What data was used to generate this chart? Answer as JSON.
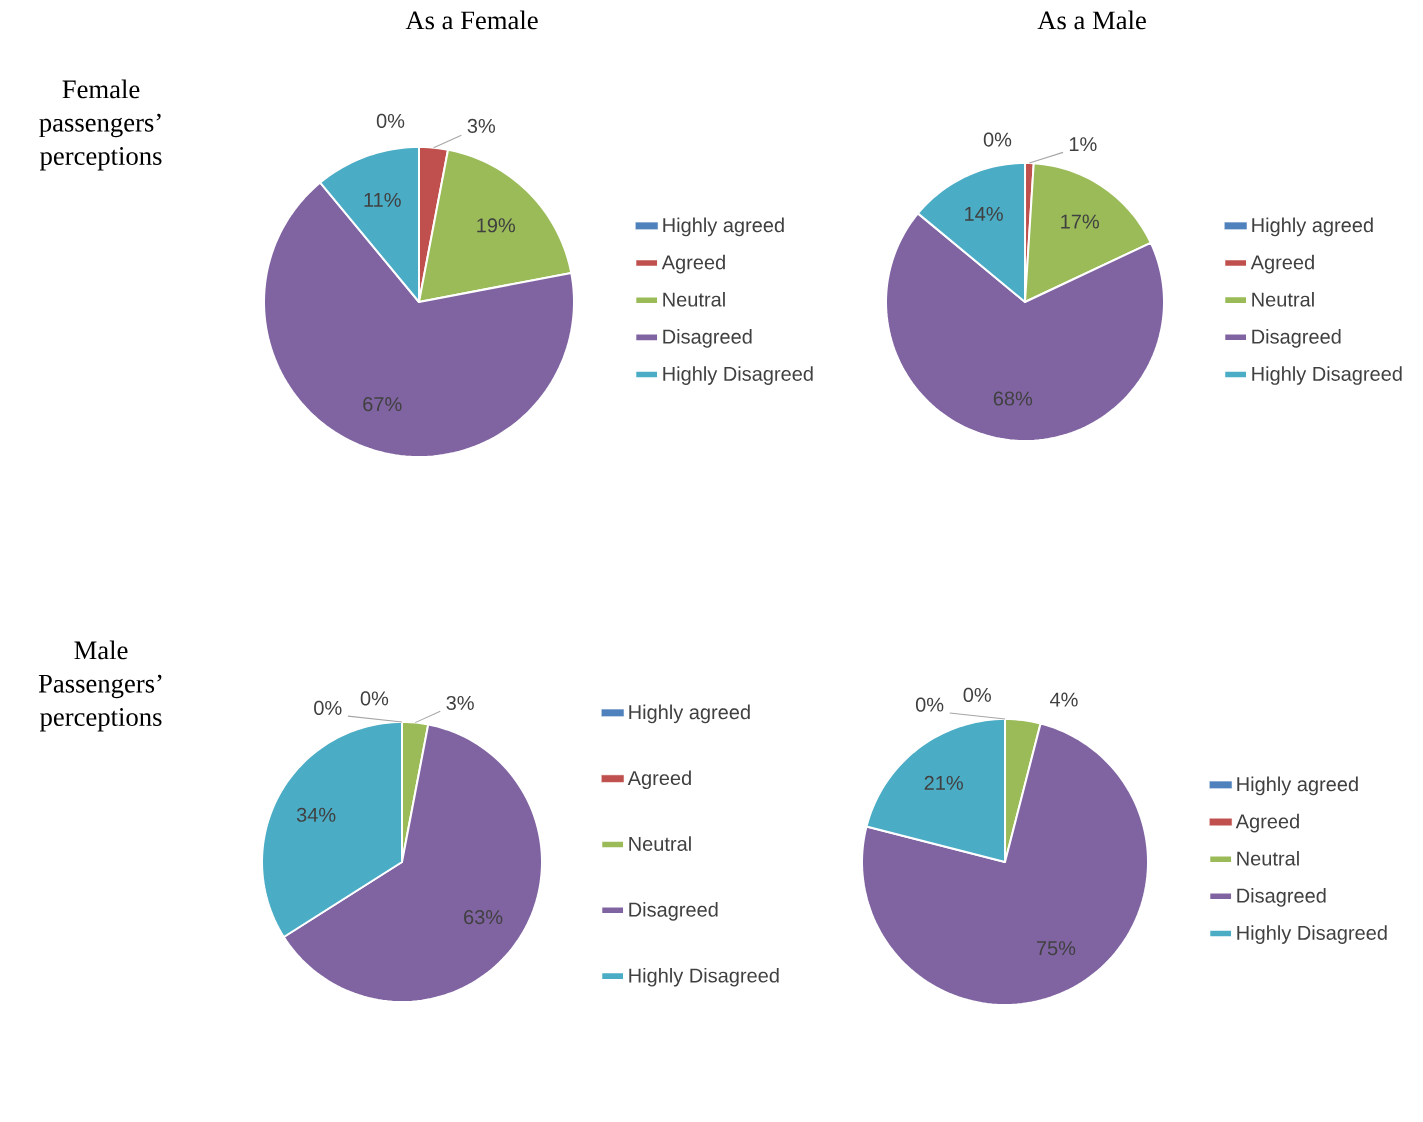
{
  "chart_data": [
    {
      "type": "pie",
      "title": "As a Female",
      "annotations": [
        "Female passengers’ perceptions"
      ],
      "categories": [
        "Highly agreed",
        "Agreed",
        "Neutral",
        "Disagreed",
        "Highly Disagreed"
      ],
      "values": [
        0,
        3,
        19,
        67,
        11
      ],
      "value_labels": [
        "0%",
        "3%",
        "19%",
        "67%",
        "11%"
      ],
      "colors": [
        "#4f81bd",
        "#c0504d",
        "#9bbb59",
        "#8064a2",
        "#4bacc6"
      ],
      "legend": "right"
    },
    {
      "type": "pie",
      "title": "As a Male",
      "categories": [
        "Highly agreed",
        "Agreed",
        "Neutral",
        "Disagreed",
        "Highly Disagreed"
      ],
      "values": [
        0,
        1,
        17,
        68,
        14
      ],
      "value_labels": [
        "0%",
        "1%",
        "17%",
        "68%",
        "14%"
      ],
      "colors": [
        "#4f81bd",
        "#c0504d",
        "#9bbb59",
        "#8064a2",
        "#4bacc6"
      ],
      "legend": "right"
    },
    {
      "type": "pie",
      "annotations": [
        "Male Passengers’ perceptions"
      ],
      "categories": [
        "Highly agreed",
        "Agreed",
        "Neutral",
        "Disagreed",
        "Highly Disagreed"
      ],
      "values": [
        0,
        0,
        3,
        63,
        34
      ],
      "value_labels": [
        "0%",
        "0%",
        "3%",
        "63%",
        "34%"
      ],
      "colors": [
        "#4f81bd",
        "#c0504d",
        "#9bbb59",
        "#8064a2",
        "#4bacc6"
      ],
      "legend": "right"
    },
    {
      "type": "pie",
      "categories": [
        "Highly agreed",
        "Agreed",
        "Neutral",
        "Disagreed",
        "Highly Disagreed"
      ],
      "values": [
        0,
        0,
        4,
        75,
        21
      ],
      "value_labels": [
        "0%",
        "0%",
        "4%",
        "75%",
        "21%"
      ],
      "colors": [
        "#4f81bd",
        "#c0504d",
        "#9bbb59",
        "#8064a2",
        "#4bacc6"
      ],
      "legend": "right"
    }
  ]
}
